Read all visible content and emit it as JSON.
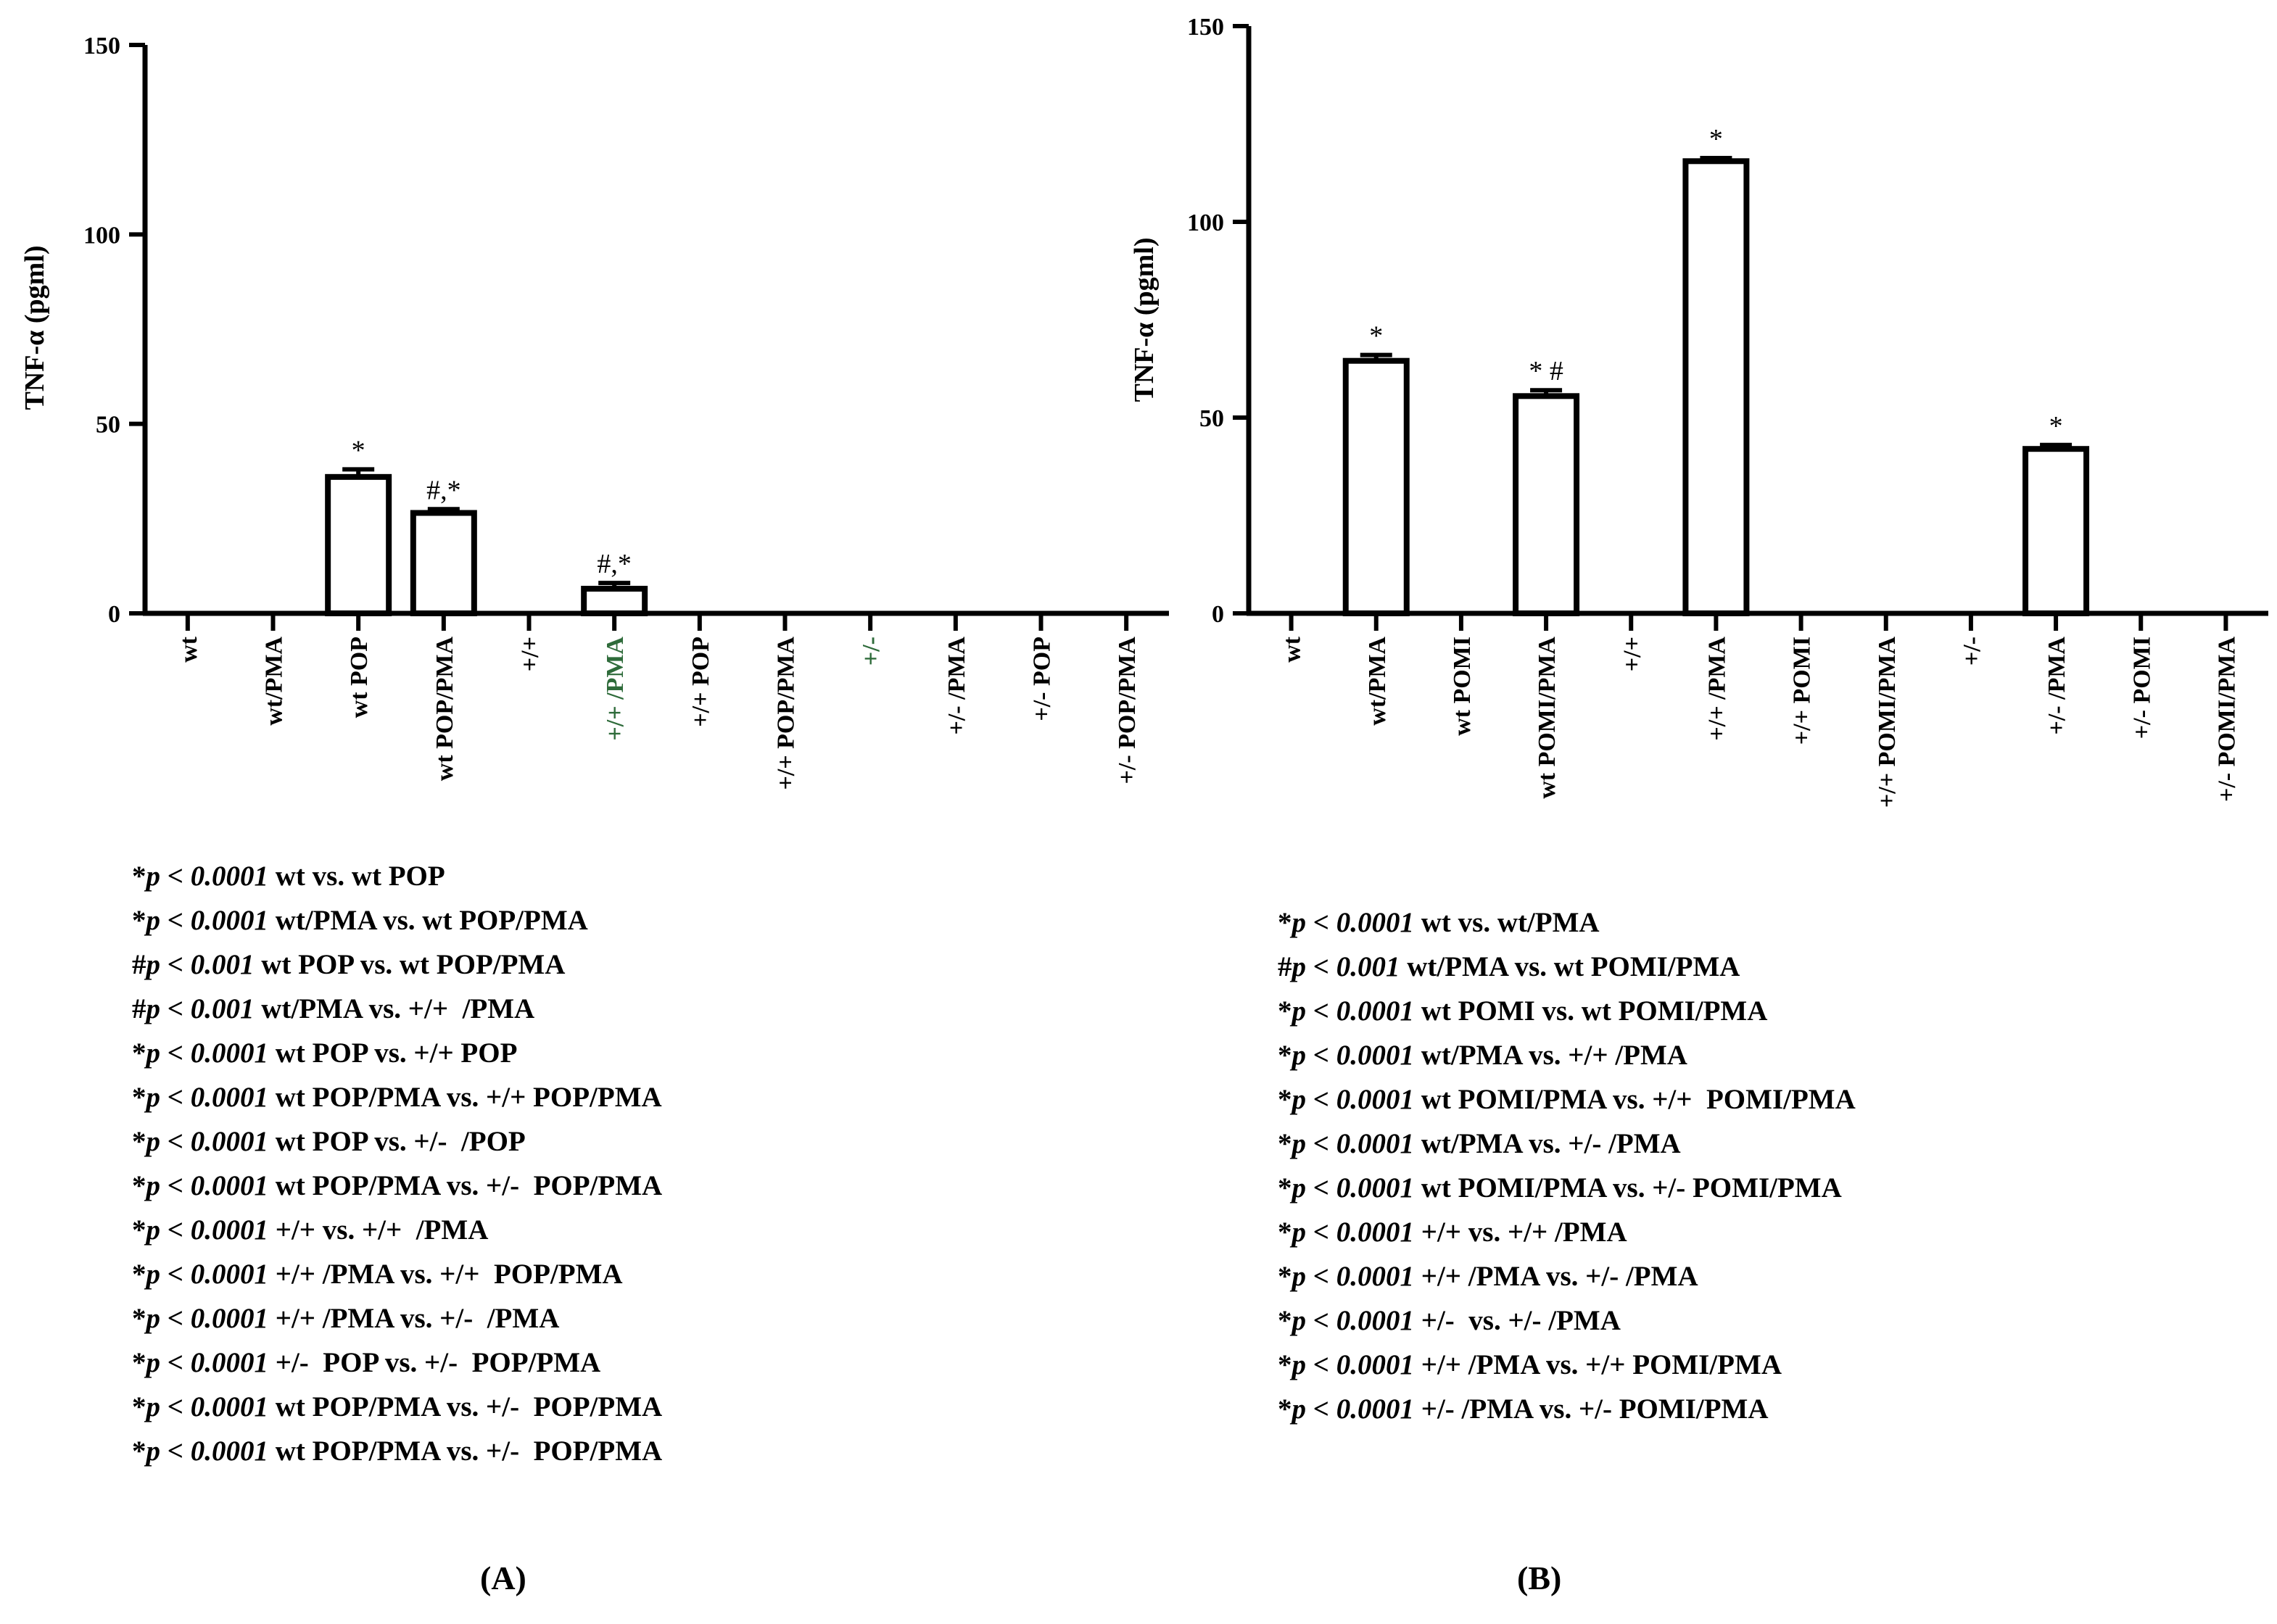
{
  "chart_data": [
    {
      "type": "bar",
      "panel_label": "(A)",
      "ylabel": "TNF-α (pgml)",
      "xlabel": "",
      "ylim": [
        0,
        150
      ],
      "yticks": [
        0,
        50,
        100,
        150
      ],
      "categories": [
        "wt",
        "wt/PMA",
        "wt POP",
        "wt POP/PMA",
        "+/+",
        "+/+ /PMA",
        "+/+ POP",
        "+/+ POP/PMA",
        "+/-",
        "+/- /PMA",
        "+/- POP",
        "+/- POP/PMA"
      ],
      "values": [
        0,
        0,
        36,
        26.5,
        0,
        6.5,
        0,
        0,
        0,
        0,
        0,
        0
      ],
      "errors": [
        0,
        0,
        2,
        1,
        0,
        1.5,
        0,
        0,
        0,
        0,
        0,
        0
      ],
      "annotations": [
        "",
        "",
        "*",
        "#,*",
        "",
        "#,*",
        "",
        "",
        "",
        "",
        "",
        ""
      ],
      "category_colors": [
        "#000000",
        "#000000",
        "#000000",
        "#000000",
        "#000000",
        "#2e6b3a",
        "#000000",
        "#000000",
        "#2e6b3a",
        "#000000",
        "#000000",
        "#000000"
      ],
      "stats": [
        {
          "sym": "*",
          "p": "p < 0.0001",
          "text": " wt vs. wt POP"
        },
        {
          "sym": "*",
          "p": "p < 0.0001",
          "text": " wt/PMA vs. wt POP/PMA"
        },
        {
          "sym": "#",
          "p": "p < 0.001",
          "text": " wt POP vs. wt POP/PMA"
        },
        {
          "sym": "#",
          "p": "p < 0.001",
          "text": " wt/PMA vs. +/+  /PMA"
        },
        {
          "sym": "*",
          "p": "p < 0.0001",
          "text": " wt POP vs. +/+ POP"
        },
        {
          "sym": "*",
          "p": "p < 0.0001",
          "text": " wt POP/PMA vs. +/+ POP/PMA"
        },
        {
          "sym": "*",
          "p": "p < 0.0001",
          "text": " wt POP vs. +/-  /POP"
        },
        {
          "sym": "*",
          "p": "p < 0.0001",
          "text": " wt POP/PMA vs. +/-  POP/PMA"
        },
        {
          "sym": "*",
          "p": "p < 0.0001",
          "text": " +/+ vs. +/+  /PMA"
        },
        {
          "sym": "*",
          "p": "p < 0.0001",
          "text": " +/+ /PMA vs. +/+  POP/PMA"
        },
        {
          "sym": "*",
          "p": "p < 0.0001",
          "text": " +/+ /PMA vs. +/-  /PMA"
        },
        {
          "sym": "*",
          "p": "p < 0.0001",
          "text": " +/-  POP vs. +/-  POP/PMA"
        },
        {
          "sym": "*",
          "p": "p < 0.0001",
          "text": " wt POP/PMA vs. +/-  POP/PMA"
        },
        {
          "sym": "*",
          "p": "p < 0.0001",
          "text": " wt POP/PMA vs. +/-  POP/PMA"
        }
      ]
    },
    {
      "type": "bar",
      "panel_label": "(B)",
      "ylabel": "TNF-α (pgml)",
      "xlabel": "",
      "ylim": [
        0,
        150
      ],
      "yticks": [
        0,
        50,
        100,
        150
      ],
      "categories": [
        "wt",
        "wt/PMA",
        "wt POMI",
        "wt POMI/PMA",
        "+/+",
        "+/+ /PMA",
        "+/+ POMI",
        "+/+ POMI/PMA",
        "+/-",
        "+/- /PMA",
        "+/- POMI",
        "+/- POMI/PMA"
      ],
      "values": [
        0,
        64.5,
        0,
        55.5,
        0,
        115.5,
        0,
        0,
        0,
        42,
        0,
        0
      ],
      "errors": [
        0,
        1.5,
        0,
        1.5,
        0,
        0.8,
        0,
        0,
        0,
        1,
        0,
        0
      ],
      "annotations": [
        "",
        "*",
        "",
        "* #",
        "",
        "*",
        "",
        "",
        "",
        "*",
        "",
        ""
      ],
      "category_colors": [
        "#000000",
        "#000000",
        "#000000",
        "#000000",
        "#000000",
        "#000000",
        "#000000",
        "#000000",
        "#000000",
        "#000000",
        "#000000",
        "#000000"
      ],
      "stats": [
        {
          "sym": "*",
          "p": "p < 0.0001",
          "text": " wt vs. wt/PMA"
        },
        {
          "sym": "#",
          "p": "p < 0.001",
          "text": " wt/PMA vs. wt POMI/PMA"
        },
        {
          "sym": "*",
          "p": "p < 0.0001",
          "text": " wt POMI vs. wt POMI/PMA"
        },
        {
          "sym": "*",
          "p": "p < 0.0001",
          "text": " wt/PMA vs. +/+ /PMA"
        },
        {
          "sym": "*",
          "p": "p < 0.0001",
          "text": " wt POMI/PMA vs. +/+  POMI/PMA"
        },
        {
          "sym": "*",
          "p": "p < 0.0001",
          "text": " wt/PMA vs. +/- /PMA"
        },
        {
          "sym": "*",
          "p": "p < 0.0001",
          "text": " wt POMI/PMA vs. +/- POMI/PMA"
        },
        {
          "sym": "*",
          "p": "p < 0.0001",
          "text": " +/+ vs. +/+ /PMA"
        },
        {
          "sym": "*",
          "p": "p < 0.0001",
          "text": " +/+ /PMA vs. +/- /PMA"
        },
        {
          "sym": "*",
          "p": "p < 0.0001",
          "text": " +/-  vs. +/- /PMA"
        },
        {
          "sym": "*",
          "p": "p < 0.0001",
          "text": " +/+ /PMA vs. +/+ POMI/PMA"
        },
        {
          "sym": "*",
          "p": "p < 0.0001",
          "text": " +/- /PMA vs. +/- POMI/PMA"
        }
      ]
    }
  ]
}
